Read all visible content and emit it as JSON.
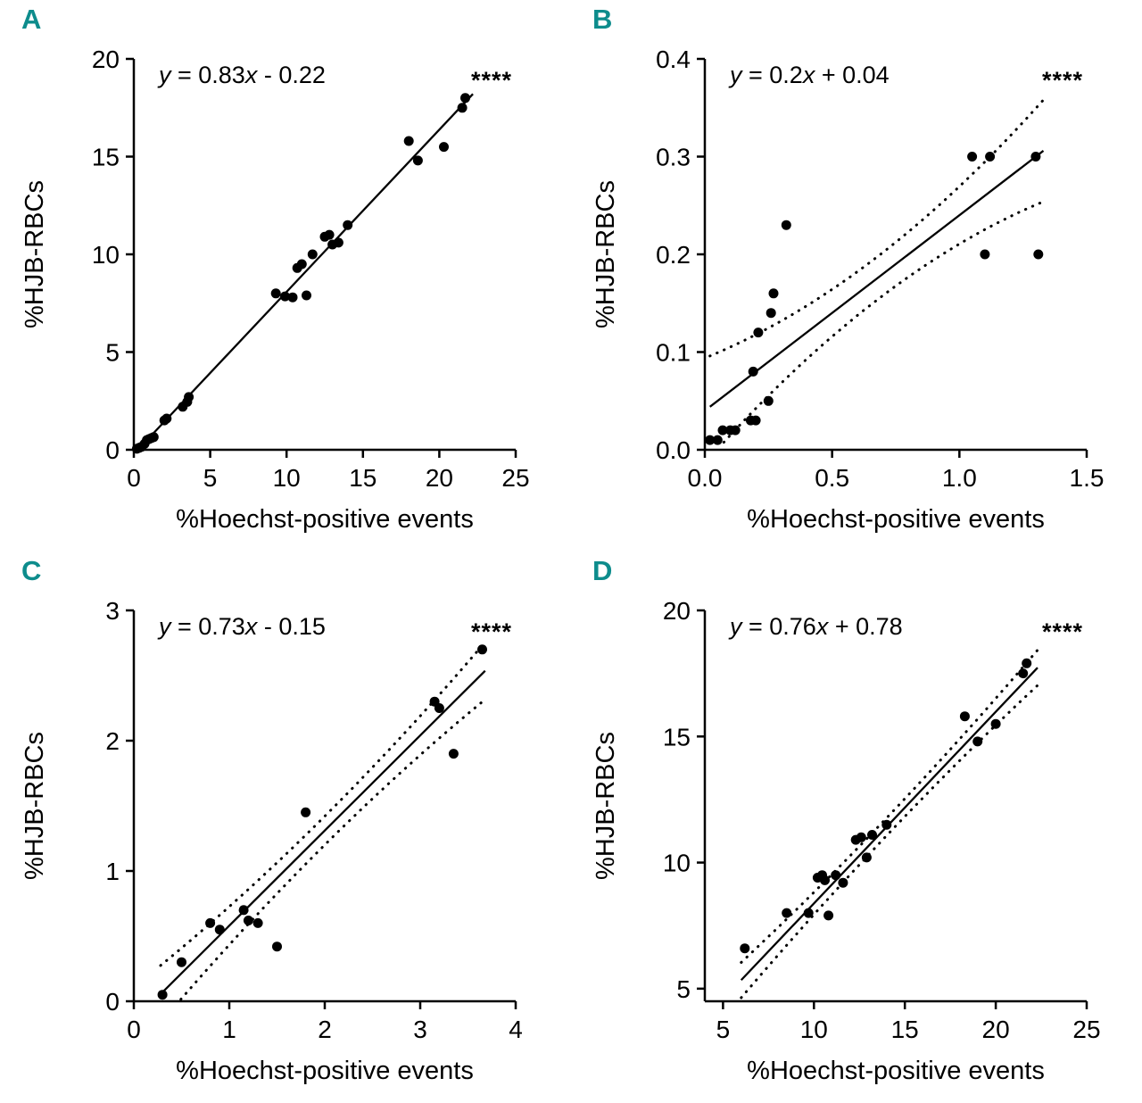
{
  "figure": {
    "panel_label_color": "#0d8c8c",
    "background_color": "#ffffff",
    "data_color": "#000000"
  },
  "chart_data": [
    {
      "panel": "A",
      "type": "scatter",
      "equation": "y = 0.83x - 0.22",
      "significance": "****",
      "xlabel": "%Hoechst-positive events",
      "ylabel": "%HJB-RBCs",
      "xlim": [
        0,
        25
      ],
      "ylim": [
        0,
        20
      ],
      "xticks": [
        0,
        5,
        10,
        15,
        20,
        25
      ],
      "xtick_labels": [
        "0",
        "5",
        "10",
        "15",
        "20",
        "25"
      ],
      "yticks": [
        0,
        5,
        10,
        15,
        20
      ],
      "ytick_labels": [
        "0",
        "5",
        "10",
        "15",
        "20"
      ],
      "fit": {
        "slope": 0.83,
        "intercept": -0.22,
        "x_start": 0.1,
        "x_end": 22.2
      },
      "confidence_band": null,
      "points": [
        [
          0.2,
          0.05
        ],
        [
          0.35,
          0.1
        ],
        [
          0.5,
          0.15
        ],
        [
          0.7,
          0.3
        ],
        [
          0.85,
          0.5
        ],
        [
          1.0,
          0.55
        ],
        [
          1.15,
          0.6
        ],
        [
          1.3,
          0.65
        ],
        [
          2.0,
          1.5
        ],
        [
          2.15,
          1.6
        ],
        [
          3.2,
          2.2
        ],
        [
          3.5,
          2.45
        ],
        [
          3.6,
          2.7
        ],
        [
          9.3,
          8.0
        ],
        [
          9.9,
          7.85
        ],
        [
          10.4,
          7.8
        ],
        [
          10.7,
          9.3
        ],
        [
          11.0,
          9.5
        ],
        [
          11.3,
          7.9
        ],
        [
          11.7,
          10.0
        ],
        [
          12.5,
          10.9
        ],
        [
          12.8,
          11.0
        ],
        [
          13.0,
          10.5
        ],
        [
          13.4,
          10.6
        ],
        [
          14.0,
          11.5
        ],
        [
          18.0,
          15.8
        ],
        [
          18.6,
          14.8
        ],
        [
          20.3,
          15.5
        ],
        [
          21.5,
          17.5
        ],
        [
          21.7,
          18.0
        ]
      ]
    },
    {
      "panel": "B",
      "type": "scatter",
      "equation": "y = 0.2x + 0.04",
      "significance": "****",
      "xlabel": "%Hoechst-positive events",
      "ylabel": "%HJB-RBCs",
      "xlim": [
        0,
        1.5
      ],
      "ylim": [
        0,
        0.4
      ],
      "xticks": [
        0,
        0.5,
        1.0,
        1.5
      ],
      "xtick_labels": [
        "0.0",
        "0.5",
        "1.0",
        "1.5"
      ],
      "yticks": [
        0,
        0.1,
        0.2,
        0.3,
        0.4
      ],
      "ytick_labels": [
        "0.0",
        "0.1",
        "0.2",
        "0.3",
        "0.4"
      ],
      "fit": {
        "slope": 0.2,
        "intercept": 0.04,
        "x_start": 0.02,
        "x_end": 1.33
      },
      "confidence_band": {
        "center": 0.022,
        "edge": 0.052
      },
      "points": [
        [
          0.02,
          0.01
        ],
        [
          0.05,
          0.01
        ],
        [
          0.07,
          0.02
        ],
        [
          0.1,
          0.02
        ],
        [
          0.12,
          0.02
        ],
        [
          0.18,
          0.03
        ],
        [
          0.2,
          0.03
        ],
        [
          0.19,
          0.08
        ],
        [
          0.21,
          0.12
        ],
        [
          0.25,
          0.05
        ],
        [
          0.26,
          0.14
        ],
        [
          0.27,
          0.16
        ],
        [
          0.32,
          0.23
        ],
        [
          1.05,
          0.3
        ],
        [
          1.12,
          0.3
        ],
        [
          1.1,
          0.2
        ],
        [
          1.3,
          0.3
        ],
        [
          1.31,
          0.2
        ]
      ]
    },
    {
      "panel": "C",
      "type": "scatter",
      "equation": "y = 0.73x - 0.15",
      "significance": "****",
      "xlabel": "%Hoechst-positive events",
      "ylabel": "%HJB-RBCs",
      "xlim": [
        0,
        4
      ],
      "ylim": [
        0,
        3
      ],
      "xticks": [
        0,
        1,
        2,
        3,
        4
      ],
      "xtick_labels": [
        "0",
        "1",
        "2",
        "3",
        "4"
      ],
      "yticks": [
        0,
        1,
        2,
        3
      ],
      "ytick_labels": [
        "0",
        "1",
        "2",
        "3"
      ],
      "fit": {
        "slope": 0.73,
        "intercept": -0.15,
        "x_start": 0.28,
        "x_end": 3.68
      },
      "confidence_band": {
        "center": 0.11,
        "edge": 0.22
      },
      "points": [
        [
          0.3,
          0.05
        ],
        [
          0.5,
          0.3
        ],
        [
          0.8,
          0.6
        ],
        [
          0.9,
          0.55
        ],
        [
          1.15,
          0.7
        ],
        [
          1.2,
          0.62
        ],
        [
          1.3,
          0.6
        ],
        [
          1.5,
          0.42
        ],
        [
          1.8,
          1.45
        ],
        [
          3.15,
          2.3
        ],
        [
          3.2,
          2.25
        ],
        [
          3.35,
          1.9
        ],
        [
          3.65,
          2.7
        ]
      ]
    },
    {
      "panel": "D",
      "type": "scatter",
      "equation": "y = 0.76x + 0.78",
      "significance": "****",
      "xlabel": "%Hoechst-positive events",
      "ylabel": "%HJB-RBCs",
      "xlim": [
        4,
        25
      ],
      "ylim": [
        4.5,
        20
      ],
      "xticks": [
        5,
        10,
        15,
        20,
        25
      ],
      "xtick_labels": [
        "5",
        "10",
        "15",
        "20",
        "25"
      ],
      "yticks": [
        5,
        10,
        15,
        20
      ],
      "ytick_labels": [
        "5",
        "10",
        "15",
        "20"
      ],
      "fit": {
        "slope": 0.76,
        "intercept": 0.78,
        "x_start": 6.0,
        "x_end": 22.3
      },
      "confidence_band": {
        "center": 0.35,
        "edge": 0.7
      },
      "points": [
        [
          6.2,
          6.6
        ],
        [
          8.5,
          8.0
        ],
        [
          9.7,
          8.0
        ],
        [
          10.2,
          9.4
        ],
        [
          10.45,
          9.5
        ],
        [
          10.6,
          9.3
        ],
        [
          10.8,
          7.9
        ],
        [
          11.2,
          9.5
        ],
        [
          11.6,
          9.2
        ],
        [
          12.3,
          10.9
        ],
        [
          12.6,
          11.0
        ],
        [
          12.9,
          10.2
        ],
        [
          13.2,
          11.1
        ],
        [
          14.0,
          11.5
        ],
        [
          18.3,
          15.8
        ],
        [
          19.0,
          14.8
        ],
        [
          20.0,
          15.5
        ],
        [
          21.5,
          17.5
        ],
        [
          21.7,
          17.9
        ]
      ]
    }
  ]
}
